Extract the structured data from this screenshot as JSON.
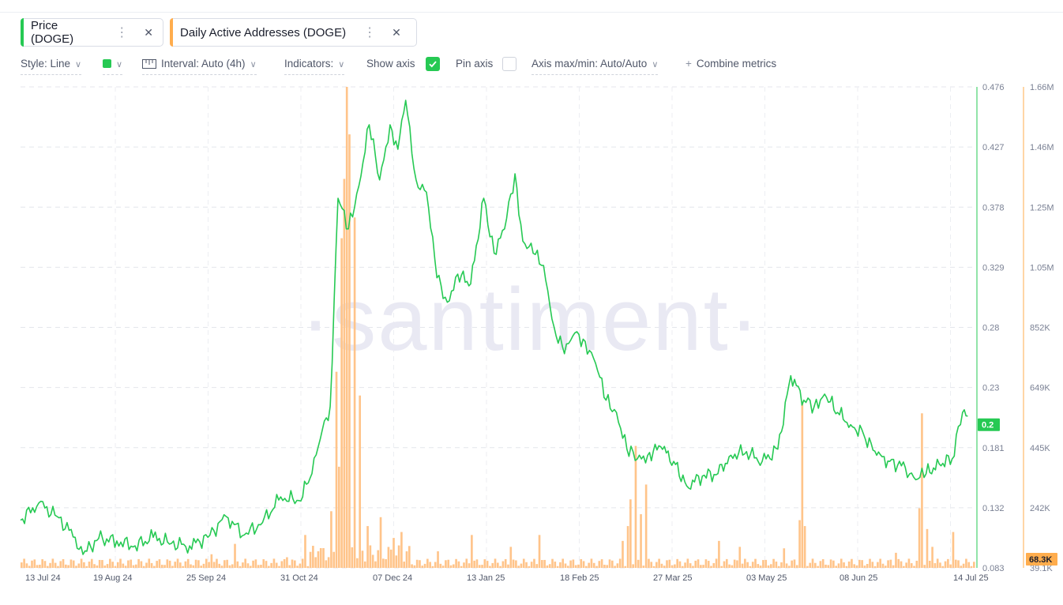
{
  "metrics": [
    {
      "label": "Price (DOGE)",
      "color": "#26c953"
    },
    {
      "label": "Daily Active Addresses (DOGE)",
      "color": "#ffad4d"
    }
  ],
  "toolbar": {
    "style_label": "Style: Line",
    "interval_label": "Interval: Auto (4h)",
    "indicators_label": "Indicators:",
    "show_axis_label": "Show axis",
    "show_axis_checked": true,
    "pin_axis_label": "Pin axis",
    "pin_axis_checked": false,
    "axis_label": "Axis max/min: Auto/Auto",
    "combine_label": "Combine metrics"
  },
  "watermark": "·santiment·",
  "chart_data": {
    "type": "line",
    "x_ticks": [
      "13 Jul 24",
      "19 Aug 24",
      "25 Sep 24",
      "31 Oct 24",
      "07 Dec 24",
      "13 Jan 25",
      "18 Feb 25",
      "27 Mar 25",
      "03 May 25",
      "08 Jun 25",
      "14 Jul 25"
    ],
    "price_axis": {
      "ticks": [
        "0.476",
        "0.427",
        "0.378",
        "0.329",
        "0.28",
        "0.23",
        "0.181",
        "0.132",
        "0.083"
      ],
      "min": 0.083,
      "max": 0.476,
      "current": "0.2",
      "color": "#26c953"
    },
    "addresses_axis": {
      "ticks": [
        "1.66M",
        "1.46M",
        "1.25M",
        "1.05M",
        "852K",
        "649K",
        "445K",
        "242K",
        "39.1K"
      ],
      "min": 39100,
      "max": 1660000,
      "current": "68.3K",
      "color": "#ffad4d"
    },
    "series": [
      {
        "name": "Price (DOGE)",
        "color": "#26c953",
        "x": [
          "2024-07-13",
          "2024-07-20",
          "2024-07-27",
          "2024-08-03",
          "2024-08-06",
          "2024-08-12",
          "2024-08-19",
          "2024-08-26",
          "2024-09-02",
          "2024-09-09",
          "2024-09-16",
          "2024-09-23",
          "2024-09-30",
          "2024-10-07",
          "2024-10-14",
          "2024-10-21",
          "2024-10-28",
          "2024-11-02",
          "2024-11-06",
          "2024-11-09",
          "2024-11-12",
          "2024-11-16",
          "2024-11-20",
          "2024-11-24",
          "2024-11-28",
          "2024-12-02",
          "2024-12-05",
          "2024-12-08",
          "2024-12-12",
          "2024-12-16",
          "2024-12-20",
          "2024-12-24",
          "2024-12-28",
          "2025-01-02",
          "2025-01-07",
          "2025-01-11",
          "2025-01-15",
          "2025-01-19",
          "2025-01-22",
          "2025-01-26",
          "2025-01-30",
          "2025-02-03",
          "2025-02-07",
          "2025-02-11",
          "2025-02-15",
          "2025-02-19",
          "2025-02-23",
          "2025-02-27",
          "2025-03-03",
          "2025-03-07",
          "2025-03-11",
          "2025-03-16",
          "2025-03-21",
          "2025-03-26",
          "2025-04-01",
          "2025-04-07",
          "2025-04-12",
          "2025-04-18",
          "2025-04-24",
          "2025-04-30",
          "2025-05-05",
          "2025-05-10",
          "2025-05-14",
          "2025-05-18",
          "2025-05-23",
          "2025-05-28",
          "2025-06-02",
          "2025-06-07",
          "2025-06-12",
          "2025-06-18",
          "2025-06-22",
          "2025-06-26",
          "2025-07-01",
          "2025-07-06",
          "2025-07-10",
          "2025-07-12"
        ],
        "y": [
          0.122,
          0.136,
          0.125,
          0.108,
          0.094,
          0.107,
          0.105,
          0.101,
          0.108,
          0.103,
          0.101,
          0.108,
          0.125,
          0.11,
          0.12,
          0.141,
          0.138,
          0.16,
          0.196,
          0.215,
          0.385,
          0.36,
          0.395,
          0.445,
          0.4,
          0.445,
          0.425,
          0.465,
          0.4,
          0.39,
          0.32,
          0.3,
          0.323,
          0.315,
          0.385,
          0.34,
          0.36,
          0.405,
          0.35,
          0.34,
          0.33,
          0.28,
          0.258,
          0.275,
          0.268,
          0.25,
          0.22,
          0.21,
          0.18,
          0.172,
          0.175,
          0.182,
          0.17,
          0.15,
          0.158,
          0.16,
          0.175,
          0.178,
          0.17,
          0.18,
          0.24,
          0.22,
          0.215,
          0.225,
          0.21,
          0.2,
          0.192,
          0.175,
          0.17,
          0.165,
          0.155,
          0.16,
          0.168,
          0.172,
          0.21,
          0.207
        ]
      },
      {
        "name": "Daily Active Addresses (DOGE)",
        "color": "#ffad4d",
        "x": [
          "2024-09-10",
          "2024-09-24",
          "2024-10-03",
          "2024-10-23",
          "2024-10-30",
          "2024-11-04",
          "2024-11-09",
          "2024-11-11",
          "2024-11-12",
          "2024-11-13",
          "2024-11-14",
          "2024-11-15",
          "2024-11-16",
          "2024-11-18",
          "2024-11-20",
          "2024-11-23",
          "2024-11-28",
          "2024-12-03",
          "2024-12-06",
          "2024-12-20",
          "2025-01-02",
          "2025-01-17",
          "2025-01-28",
          "2025-03-01",
          "2025-03-03",
          "2025-03-04",
          "2025-03-06",
          "2025-03-08",
          "2025-03-10",
          "2025-04-07",
          "2025-04-15",
          "2025-05-02",
          "2025-05-08",
          "2025-05-09",
          "2025-05-10",
          "2025-06-14",
          "2025-06-23",
          "2025-06-24",
          "2025-06-26",
          "2025-06-28",
          "2025-07-06"
        ],
        "y": [
          60000,
          85000,
          120000,
          75000,
          150000,
          95000,
          230000,
          700000,
          380000,
          1150000,
          1350000,
          1660000,
          1500000,
          1220000,
          620000,
          180000,
          210000,
          140000,
          160000,
          95000,
          150000,
          110000,
          150000,
          130000,
          180000,
          270000,
          450000,
          220000,
          320000,
          130000,
          110000,
          105000,
          200000,
          600000,
          180000,
          90000,
          240000,
          560000,
          170000,
          110000,
          160000
        ]
      }
    ]
  }
}
